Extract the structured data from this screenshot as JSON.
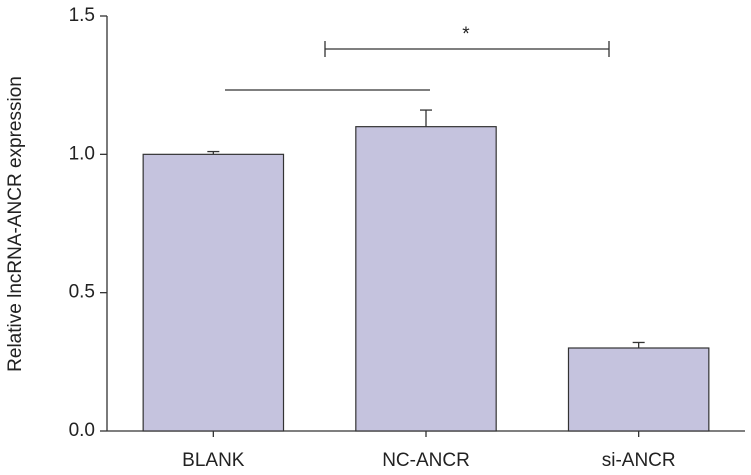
{
  "chart_data": {
    "type": "bar",
    "y_label": "Relative lncRNA-ANCR expression",
    "categories": [
      "BLANK",
      "NC-ANCR",
      "si-ANCR"
    ],
    "values": [
      1.0,
      1.1,
      0.3
    ],
    "errors": [
      0.01,
      0.06,
      0.02
    ],
    "color": "#c5c3de",
    "ylim": [
      0,
      1.5
    ],
    "yticks": [
      {
        "value": 0,
        "label": "0.0"
      },
      0.5,
      {
        "value": 1,
        "label": "1.0"
      },
      {
        "value": 1.5,
        "label": "1.5"
      }
    ],
    "annotations": [
      "*"
    ]
  }
}
